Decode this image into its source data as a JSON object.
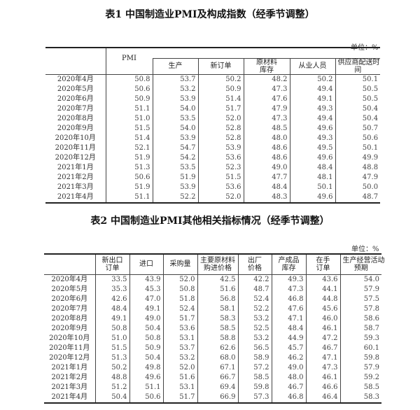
{
  "table1": {
    "title": "表1  中国制造业PMI及构成指数（经季节调整）",
    "unit": "单位：%",
    "headers": [
      "PMI",
      "生产",
      "新订单",
      "原材料\n库存",
      "从业人员",
      "供应商配送时\n间"
    ],
    "rows": [
      [
        "2020年4月",
        "50.8",
        "53.7",
        "50.2",
        "48.2",
        "50.2",
        "50.1"
      ],
      [
        "2020年5月",
        "50.6",
        "53.2",
        "50.9",
        "47.3",
        "49.4",
        "50.5"
      ],
      [
        "2020年6月",
        "50.9",
        "53.9",
        "51.4",
        "47.6",
        "49.1",
        "50.5"
      ],
      [
        "2020年7月",
        "51.1",
        "54.0",
        "51.7",
        "47.9",
        "49.3",
        "50.4"
      ],
      [
        "2020年8月",
        "51.0",
        "53.5",
        "52.0",
        "47.3",
        "49.4",
        "50.4"
      ],
      [
        "2020年9月",
        "51.5",
        "54.0",
        "52.8",
        "48.5",
        "49.6",
        "50.7"
      ],
      [
        "2020年10月",
        "51.4",
        "53.9",
        "52.8",
        "48.0",
        "49.3",
        "50.6"
      ],
      [
        "2020年11月",
        "52.1",
        "54.7",
        "53.9",
        "48.6",
        "49.5",
        "50.1"
      ],
      [
        "2020年12月",
        "51.9",
        "54.2",
        "53.6",
        "48.6",
        "49.6",
        "49.9"
      ],
      [
        "2021年1月",
        "51.3",
        "53.5",
        "52.3",
        "49.0",
        "48.4",
        "48.8"
      ],
      [
        "2021年2月",
        "50.6",
        "51.9",
        "51.5",
        "47.7",
        "48.1",
        "47.9"
      ],
      [
        "2021年3月",
        "51.9",
        "53.9",
        "53.6",
        "48.4",
        "50.1",
        "50.0"
      ],
      [
        "2021年4月",
        "51.1",
        "52.2",
        "52.0",
        "48.3",
        "49.6",
        "48.7"
      ]
    ]
  },
  "table2": {
    "title": "表2  中国制造业PMI其他相关指标情况（经季节调整）",
    "unit": "单位：%",
    "headers": [
      "新出口\n订单",
      "进口",
      "采购量",
      "主要原材料\n购进价格",
      "出厂\n价格",
      "产成品\n库存",
      "在手\n订单",
      "生产经营活动\n预期"
    ],
    "rows": [
      [
        "2020年4月",
        "33.5",
        "43.9",
        "52.0",
        "42.5",
        "42.2",
        "49.3",
        "43.6",
        "54.0"
      ],
      [
        "2020年5月",
        "35.3",
        "45.3",
        "50.8",
        "51.6",
        "48.7",
        "47.3",
        "44.1",
        "57.9"
      ],
      [
        "2020年6月",
        "42.6",
        "47.0",
        "51.8",
        "56.8",
        "52.4",
        "46.8",
        "44.8",
        "57.5"
      ],
      [
        "2020年7月",
        "48.4",
        "49.1",
        "52.4",
        "58.1",
        "52.2",
        "47.6",
        "45.6",
        "57.8"
      ],
      [
        "2020年8月",
        "49.1",
        "49.0",
        "51.7",
        "58.3",
        "53.2",
        "47.1",
        "46.0",
        "58.6"
      ],
      [
        "2020年9月",
        "50.8",
        "50.4",
        "53.6",
        "58.5",
        "52.5",
        "48.4",
        "46.1",
        "58.7"
      ],
      [
        "2020年10月",
        "51.0",
        "50.8",
        "53.1",
        "58.8",
        "53.2",
        "44.9",
        "47.2",
        "59.3"
      ],
      [
        "2020年11月",
        "51.5",
        "50.9",
        "53.7",
        "62.6",
        "56.5",
        "45.7",
        "46.7",
        "60.1"
      ],
      [
        "2020年12月",
        "51.3",
        "50.4",
        "53.2",
        "68.0",
        "58.9",
        "46.2",
        "47.1",
        "59.8"
      ],
      [
        "2021年1月",
        "50.2",
        "49.8",
        "52.0",
        "67.1",
        "57.2",
        "49.0",
        "47.3",
        "57.9"
      ],
      [
        "2021年2月",
        "48.8",
        "49.6",
        "51.6",
        "66.7",
        "58.5",
        "48.0",
        "46.1",
        "59.2"
      ],
      [
        "2021年3月",
        "51.2",
        "51.1",
        "53.1",
        "69.4",
        "59.8",
        "46.7",
        "46.6",
        "58.5"
      ],
      [
        "2021年4月",
        "50.4",
        "50.6",
        "51.7",
        "66.9",
        "57.3",
        "46.8",
        "46.4",
        "58.3"
      ]
    ]
  }
}
